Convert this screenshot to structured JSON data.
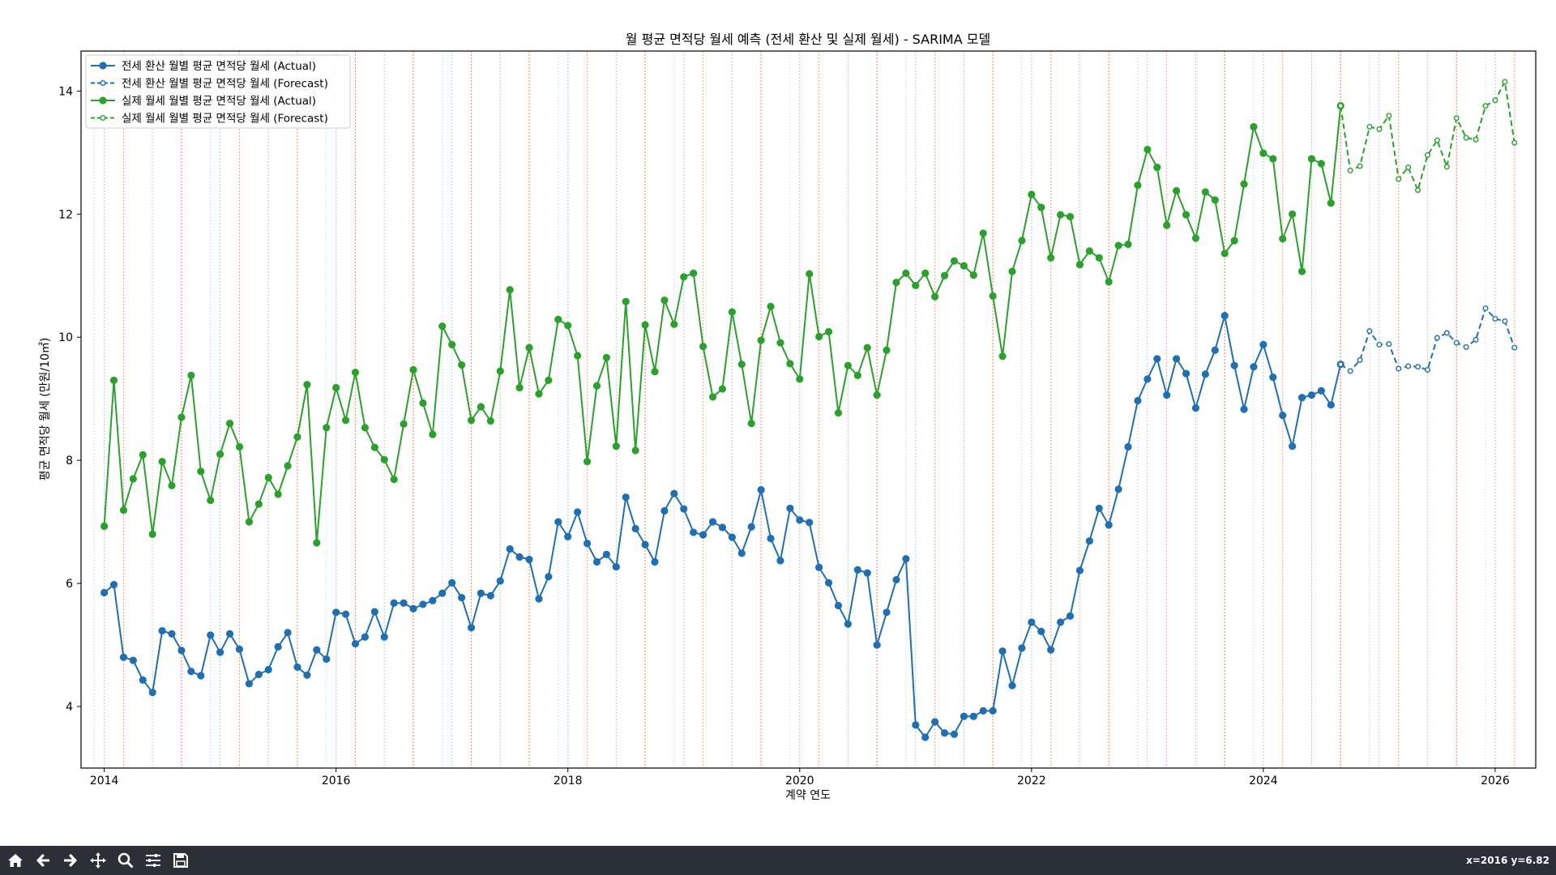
{
  "chart_data": {
    "type": "line",
    "title": "월 평균 면적당 월세 예측 (전세 환산 및 실제 월세) - SARIMA 모델",
    "xlabel": "계약 연도",
    "ylabel": "평균 면적당 월세 (만원/10㎡)",
    "xlim": [
      2013.8,
      2026.35
    ],
    "ylim": [
      3.0,
      14.65
    ],
    "x_ticks": [
      2014,
      2016,
      2018,
      2020,
      2022,
      2024,
      2026
    ],
    "x_tick_labels": [
      "2014",
      "2016",
      "2018",
      "2020",
      "2022",
      "2024",
      "2026"
    ],
    "y_ticks": [
      4,
      6,
      8,
      10,
      12,
      14
    ],
    "y_tick_labels": [
      "4",
      "6",
      "8",
      "10",
      "12",
      "14"
    ],
    "grid": false,
    "legend_position": "top-left",
    "x_start_label": "2014-01",
    "x_frequency": "monthly",
    "vertical_markers": [
      {
        "month": 1,
        "color": "#9ecae1"
      },
      {
        "month": 3,
        "color": "#fc9272"
      },
      {
        "month": 6,
        "color": "#a1d99b"
      },
      {
        "month": 9,
        "color": "#fb6a4a"
      },
      {
        "month": 12,
        "color": "#c6dbef"
      }
    ],
    "series": [
      {
        "name": "전세 환산 월별 평균 면적당 월세 (Actual)",
        "color": "#1f6fb2",
        "style": "solid",
        "marker": "filled",
        "start": "2014-01",
        "values": [
          5.85,
          5.98,
          4.8,
          4.75,
          4.43,
          4.23,
          5.23,
          5.18,
          4.91,
          4.57,
          4.5,
          5.16,
          4.88,
          5.18,
          4.93,
          4.37,
          4.52,
          4.6,
          4.97,
          5.2,
          4.64,
          4.51,
          4.92,
          4.77,
          5.53,
          5.5,
          5.02,
          5.13,
          5.54,
          5.13,
          5.68,
          5.68,
          5.59,
          5.66,
          5.72,
          5.84,
          6.01,
          5.77,
          5.28,
          5.84,
          5.8,
          6.04,
          6.56,
          6.43,
          6.39,
          5.75,
          6.11,
          7.0,
          6.76,
          7.16,
          6.65,
          6.35,
          6.47,
          6.27,
          7.4,
          6.89,
          6.63,
          6.35,
          7.18,
          7.46,
          7.21,
          6.83,
          6.79,
          7.0,
          6.91,
          6.75,
          6.49,
          6.92,
          7.52,
          6.73,
          6.37,
          7.22,
          7.03,
          6.99,
          6.26,
          6.01,
          5.64,
          5.34,
          6.22,
          6.17,
          5.0,
          5.53,
          6.06,
          6.4,
          3.7,
          3.5,
          3.75,
          3.57,
          3.55,
          3.84,
          3.84,
          3.93,
          3.93,
          4.9,
          4.34,
          4.95,
          5.37,
          5.22,
          4.92,
          5.37,
          5.47,
          6.21,
          6.69,
          7.22,
          6.95,
          7.53,
          8.22,
          8.97,
          9.32,
          9.65,
          9.06,
          9.65,
          9.41,
          8.85,
          9.4,
          9.79,
          10.35,
          9.54,
          8.83,
          9.52,
          9.88,
          9.35,
          8.73,
          8.23,
          9.02,
          9.06,
          9.13,
          8.9,
          9.56
        ]
      },
      {
        "name": "전세 환산 월별 평균 면적당 월세 (Forecast)",
        "color": "#1f6fb2",
        "style": "dashed",
        "marker": "open",
        "start": "2024-09",
        "values": [
          9.56,
          9.45,
          9.63,
          10.1,
          9.88,
          9.89,
          9.49,
          9.53,
          9.52,
          9.47,
          9.99,
          10.07,
          9.91,
          9.84,
          9.96,
          10.47,
          10.3,
          10.26,
          9.83
        ]
      },
      {
        "name": "실제 월세 월별 평균 면적당 월세 (Actual)",
        "color": "#2ca02c",
        "style": "solid",
        "marker": "filled",
        "start": "2014-01",
        "values": [
          6.93,
          9.3,
          7.19,
          7.7,
          8.09,
          6.8,
          7.98,
          7.59,
          8.7,
          9.38,
          7.82,
          7.35,
          8.1,
          8.6,
          8.22,
          7.0,
          7.29,
          7.72,
          7.45,
          7.91,
          8.38,
          9.23,
          6.66,
          8.53,
          9.18,
          8.65,
          9.43,
          8.53,
          8.21,
          8.01,
          7.69,
          8.59,
          9.47,
          8.93,
          8.42,
          10.18,
          9.88,
          9.55,
          8.65,
          8.87,
          8.64,
          9.45,
          10.77,
          9.18,
          9.83,
          9.08,
          9.3,
          10.29,
          10.19,
          9.7,
          7.98,
          9.21,
          9.67,
          8.23,
          10.58,
          8.16,
          10.2,
          9.44,
          10.6,
          10.21,
          10.98,
          11.04,
          9.85,
          9.03,
          9.16,
          10.41,
          9.56,
          8.6,
          9.95,
          10.5,
          9.91,
          9.57,
          9.32,
          11.03,
          10.01,
          10.09,
          8.77,
          9.54,
          9.38,
          9.83,
          9.06,
          9.79,
          10.89,
          11.04,
          10.84,
          11.04,
          10.66,
          11.0,
          11.24,
          11.16,
          11.01,
          11.69,
          10.67,
          9.69,
          11.07,
          11.57,
          12.32,
          12.11,
          11.29,
          11.99,
          11.96,
          11.18,
          11.4,
          11.29,
          10.9,
          11.49,
          11.51,
          12.47,
          13.05,
          12.76,
          11.82,
          12.38,
          11.99,
          11.61,
          12.36,
          12.23,
          11.36,
          11.57,
          12.49,
          13.42,
          12.99,
          12.9,
          11.6,
          12.0,
          11.07,
          12.9,
          12.82,
          12.18,
          13.76
        ]
      },
      {
        "name": "실제 월세 월별 평균 면적당 월세 (Forecast)",
        "color": "#2ca02c",
        "style": "dashed",
        "marker": "open",
        "start": "2024-09",
        "values": [
          13.76,
          12.71,
          12.78,
          13.42,
          13.38,
          13.6,
          12.57,
          12.76,
          12.39,
          12.96,
          13.2,
          12.77,
          13.56,
          13.24,
          13.21,
          13.76,
          13.85,
          14.15,
          13.16
        ]
      }
    ]
  },
  "status": {
    "coords": "x=2016 y=6.82"
  },
  "toolbar": {
    "buttons": [
      "home-icon",
      "back-icon",
      "forward-icon",
      "pan-icon",
      "zoom-icon",
      "configure-icon",
      "save-icon"
    ]
  }
}
